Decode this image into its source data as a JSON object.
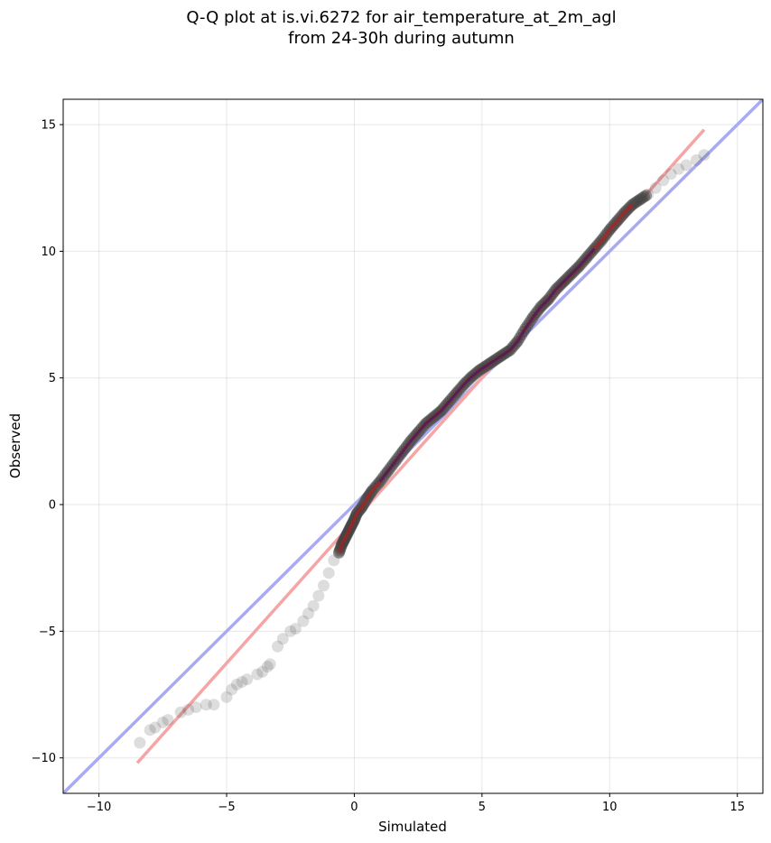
{
  "chart_data": {
    "type": "scatter",
    "title": "Q-Q plot at is.vi.6272 for air_temperature_at_2m_agl",
    "subtitle": "from 24-30h during autumn",
    "xlabel": "Simulated",
    "ylabel": "Observed",
    "xlim": [
      -11.4,
      16.0
    ],
    "ylim": [
      -11.4,
      16.0
    ],
    "xticks": [
      -10,
      -5,
      0,
      5,
      10,
      15
    ],
    "yticks": [
      -10,
      -5,
      0,
      5,
      10,
      15
    ],
    "xtick_labels": [
      "−10",
      "−5",
      "0",
      "5",
      "10",
      "15"
    ],
    "ytick_labels": [
      "−10",
      "−5",
      "0",
      "5",
      "10",
      "15"
    ],
    "grid": true,
    "colors": {
      "identity_line": "#aaaaf2",
      "fit_line": "#f5a5a5",
      "points": "#444444",
      "fit_overlay": "#c81414",
      "core_overlay": "#14147d"
    },
    "identity_line": {
      "x": [
        -11.4,
        16.0
      ],
      "y": [
        -11.4,
        16.0
      ]
    },
    "fit_line": {
      "x": [
        -8.5,
        13.7
      ],
      "y": [
        -10.2,
        14.8
      ]
    },
    "points": {
      "x": [
        -8.4,
        -8.0,
        -7.8,
        -7.5,
        -7.3,
        -6.8,
        -6.5,
        -6.2,
        -5.8,
        -5.5,
        -5.0,
        -4.8,
        -4.6,
        -4.4,
        -4.2,
        -3.8,
        -3.6,
        -3.4,
        -3.3,
        -3.0,
        -2.8,
        -2.5,
        -2.3,
        -2.0,
        -1.8,
        -1.6,
        -1.4,
        -1.2,
        -1.0,
        -0.8,
        -0.6,
        -0.5,
        -0.4,
        -0.3,
        -0.2,
        -0.1,
        0.0,
        0.1,
        0.3,
        0.5,
        0.7,
        1.0,
        1.3,
        1.6,
        1.9,
        2.2,
        2.5,
        2.8,
        3.1,
        3.4,
        3.7,
        4.0,
        4.3,
        4.6,
        4.9,
        5.2,
        5.5,
        5.8,
        6.1,
        6.4,
        6.7,
        7.0,
        7.3,
        7.6,
        7.9,
        8.2,
        8.5,
        8.8,
        9.1,
        9.4,
        9.7,
        10.0,
        10.3,
        10.6,
        10.9,
        11.2,
        11.5,
        11.8,
        12.1,
        12.4,
        12.7,
        13.0,
        13.4,
        13.7
      ],
      "y": [
        -9.4,
        -8.9,
        -8.8,
        -8.6,
        -8.5,
        -8.2,
        -8.1,
        -8.0,
        -7.9,
        -7.9,
        -7.6,
        -7.3,
        -7.1,
        -7.0,
        -6.9,
        -6.7,
        -6.6,
        -6.4,
        -6.3,
        -5.6,
        -5.3,
        -5.0,
        -4.9,
        -4.6,
        -4.3,
        -4.0,
        -3.6,
        -3.2,
        -2.7,
        -2.2,
        -1.9,
        -1.6,
        -1.4,
        -1.2,
        -1.0,
        -0.8,
        -0.6,
        -0.35,
        -0.1,
        0.25,
        0.55,
        0.9,
        1.3,
        1.7,
        2.1,
        2.5,
        2.85,
        3.2,
        3.45,
        3.7,
        4.05,
        4.4,
        4.75,
        5.05,
        5.3,
        5.5,
        5.7,
        5.9,
        6.1,
        6.45,
        6.95,
        7.4,
        7.8,
        8.1,
        8.5,
        8.8,
        9.1,
        9.4,
        9.75,
        10.1,
        10.45,
        10.85,
        11.2,
        11.55,
        11.85,
        12.05,
        12.25,
        12.5,
        12.8,
        13.05,
        13.25,
        13.4,
        13.6,
        13.8
      ]
    }
  }
}
